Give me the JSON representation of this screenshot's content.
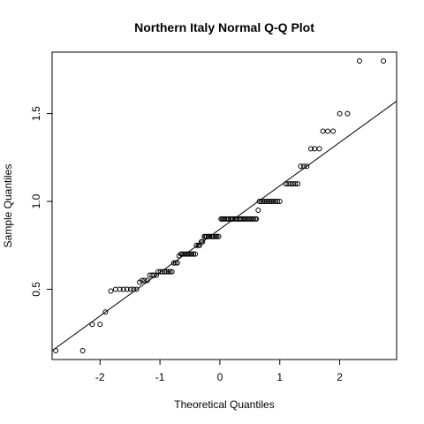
{
  "chart_data": {
    "type": "scatter",
    "title": "Northern Italy Normal Q-Q Plot",
    "xlabel": "Theoretical Quantiles",
    "ylabel": "Sample Quantiles",
    "xlim": [
      -2.8,
      2.95
    ],
    "ylim": [
      0.1,
      1.85
    ],
    "x_ticks": [
      -2,
      -1,
      0,
      1,
      2
    ],
    "x_tick_labels": [
      "-2",
      "-1",
      "0",
      "1",
      "2"
    ],
    "y_ticks": [
      0.5,
      1.0,
      1.5
    ],
    "y_tick_labels": [
      "0.5",
      "1.0",
      "1.5"
    ],
    "grid": false,
    "legend": "none",
    "reference_line": {
      "slope": 0.247,
      "intercept": 0.842
    },
    "series": [
      {
        "marker": "open-circle",
        "color": "#000000",
        "points": [
          [
            -2.74,
            0.15
          ],
          [
            -2.29,
            0.15
          ],
          [
            -2.13,
            0.3
          ],
          [
            -2.0,
            0.3
          ],
          [
            -1.91,
            0.37
          ],
          [
            -1.82,
            0.49
          ],
          [
            -1.74,
            0.5
          ],
          [
            -1.67,
            0.5
          ],
          [
            -1.61,
            0.5
          ],
          [
            -1.55,
            0.5
          ],
          [
            -1.49,
            0.5
          ],
          [
            -1.44,
            0.5
          ],
          [
            -1.39,
            0.5
          ],
          [
            -1.34,
            0.54
          ],
          [
            -1.3,
            0.55
          ],
          [
            -1.26,
            0.55
          ],
          [
            -1.21,
            0.55
          ],
          [
            -1.17,
            0.58
          ],
          [
            -1.13,
            0.58
          ],
          [
            -1.1,
            0.58
          ],
          [
            -1.06,
            0.58
          ],
          [
            -1.03,
            0.6
          ],
          [
            -0.99,
            0.6
          ],
          [
            -0.96,
            0.6
          ],
          [
            -0.92,
            0.6
          ],
          [
            -0.89,
            0.6
          ],
          [
            -0.86,
            0.6
          ],
          [
            -0.83,
            0.6
          ],
          [
            -0.8,
            0.6
          ],
          [
            -0.77,
            0.65
          ],
          [
            -0.74,
            0.65
          ],
          [
            -0.71,
            0.65
          ],
          [
            -0.68,
            0.69
          ],
          [
            -0.65,
            0.7
          ],
          [
            -0.63,
            0.7
          ],
          [
            -0.6,
            0.7
          ],
          [
            -0.57,
            0.7
          ],
          [
            -0.54,
            0.7
          ],
          [
            -0.52,
            0.7
          ],
          [
            -0.49,
            0.7
          ],
          [
            -0.47,
            0.7
          ],
          [
            -0.44,
            0.7
          ],
          [
            -0.41,
            0.7
          ],
          [
            -0.39,
            0.75
          ],
          [
            -0.36,
            0.75
          ],
          [
            -0.34,
            0.75
          ],
          [
            -0.31,
            0.77
          ],
          [
            -0.29,
            0.77
          ],
          [
            -0.26,
            0.8
          ],
          [
            -0.24,
            0.8
          ],
          [
            -0.22,
            0.8
          ],
          [
            -0.19,
            0.8
          ],
          [
            -0.17,
            0.8
          ],
          [
            -0.14,
            0.8
          ],
          [
            -0.12,
            0.8
          ],
          [
            -0.1,
            0.8
          ],
          [
            -0.07,
            0.8
          ],
          [
            -0.05,
            0.8
          ],
          [
            -0.02,
            0.8
          ],
          [
            0.02,
            0.9
          ],
          [
            0.04,
            0.9
          ],
          [
            0.06,
            0.9
          ],
          [
            0.08,
            0.9
          ],
          [
            0.11,
            0.9
          ],
          [
            0.13,
            0.9
          ],
          [
            0.15,
            0.9
          ],
          [
            0.18,
            0.9
          ],
          [
            0.2,
            0.9
          ],
          [
            0.22,
            0.9
          ],
          [
            0.25,
            0.9
          ],
          [
            0.27,
            0.9
          ],
          [
            0.29,
            0.9
          ],
          [
            0.32,
            0.9
          ],
          [
            0.34,
            0.9
          ],
          [
            0.36,
            0.9
          ],
          [
            0.39,
            0.9
          ],
          [
            0.41,
            0.9
          ],
          [
            0.44,
            0.9
          ],
          [
            0.46,
            0.9
          ],
          [
            0.49,
            0.9
          ],
          [
            0.51,
            0.9
          ],
          [
            0.54,
            0.9
          ],
          [
            0.56,
            0.9
          ],
          [
            0.59,
            0.9
          ],
          [
            0.61,
            0.9
          ],
          [
            0.64,
            0.95
          ],
          [
            0.66,
            1.0
          ],
          [
            0.69,
            1.0
          ],
          [
            0.72,
            1.0
          ],
          [
            0.75,
            1.0
          ],
          [
            0.78,
            1.0
          ],
          [
            0.81,
            1.0
          ],
          [
            0.84,
            1.0
          ],
          [
            0.87,
            1.0
          ],
          [
            0.9,
            1.0
          ],
          [
            0.93,
            1.0
          ],
          [
            0.96,
            1.0
          ],
          [
            1.0,
            1.0
          ],
          [
            1.1,
            1.1
          ],
          [
            1.14,
            1.1
          ],
          [
            1.18,
            1.1
          ],
          [
            1.22,
            1.1
          ],
          [
            1.26,
            1.1
          ],
          [
            1.3,
            1.1
          ],
          [
            1.35,
            1.2
          ],
          [
            1.4,
            1.2
          ],
          [
            1.45,
            1.2
          ],
          [
            1.52,
            1.3
          ],
          [
            1.58,
            1.3
          ],
          [
            1.66,
            1.3
          ],
          [
            1.72,
            1.4
          ],
          [
            1.8,
            1.4
          ],
          [
            1.89,
            1.4
          ],
          [
            2.0,
            1.5
          ],
          [
            2.13,
            1.5
          ],
          [
            2.33,
            1.8
          ],
          [
            2.73,
            1.8
          ]
        ]
      }
    ]
  }
}
